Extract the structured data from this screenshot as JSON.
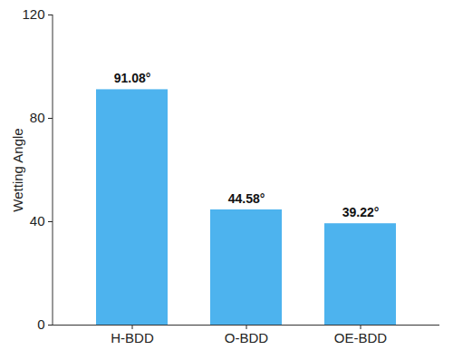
{
  "chart_data": {
    "type": "bar",
    "categories": [
      "H-BDD",
      "O-BDD",
      "OE-BDD"
    ],
    "values": [
      91.08,
      44.58,
      39.22
    ],
    "value_labels": [
      "91.08°",
      "44.58°",
      "39.22°"
    ],
    "data_labels": true,
    "y_label": "Wetting Angle",
    "ylim": [
      0,
      120
    ],
    "yticks": [
      0,
      40,
      80,
      120
    ],
    "color": "#4db3ee",
    "grid": false
  }
}
